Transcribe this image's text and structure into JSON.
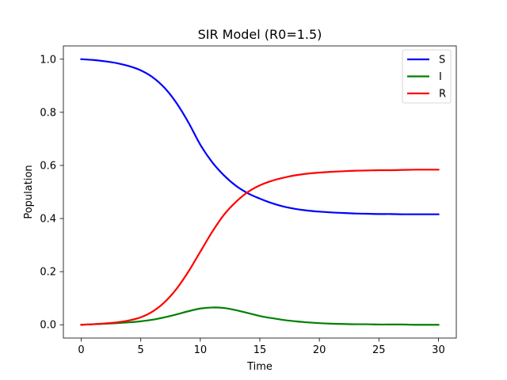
{
  "chart_data": {
    "type": "line",
    "title": "SIR Model (R0=1.5)",
    "xlabel": "Time",
    "ylabel": "Population",
    "xlim": [
      -1.5,
      31.5
    ],
    "ylim": [
      -0.05,
      1.05
    ],
    "xticks": [
      0,
      5,
      10,
      15,
      20,
      25,
      30
    ],
    "xtick_labels": [
      "0",
      "5",
      "10",
      "15",
      "20",
      "25",
      "30"
    ],
    "yticks": [
      0.0,
      0.2,
      0.4,
      0.6,
      0.8,
      1.0
    ],
    "ytick_labels": [
      "0.0",
      "0.2",
      "0.4",
      "0.6",
      "0.8",
      "1.0"
    ],
    "grid": false,
    "legend_position": "top-right",
    "x": [
      0,
      1,
      2,
      3,
      4,
      5,
      6,
      7,
      8,
      9,
      10,
      11,
      12,
      13,
      14,
      15,
      16,
      17,
      18,
      19,
      20,
      21,
      22,
      23,
      24,
      25,
      26,
      27,
      28,
      29,
      30
    ],
    "series": [
      {
        "name": "S",
        "color": "#0000ff",
        "values": [
          1.0,
          0.997,
          0.992,
          0.985,
          0.974,
          0.958,
          0.932,
          0.892,
          0.835,
          0.762,
          0.678,
          0.612,
          0.562,
          0.523,
          0.495,
          0.475,
          0.458,
          0.445,
          0.436,
          0.43,
          0.426,
          0.423,
          0.421,
          0.419,
          0.418,
          0.417,
          0.417,
          0.416,
          0.416,
          0.416,
          0.416
        ]
      },
      {
        "name": "I",
        "color": "#008000",
        "values": [
          0.0,
          0.002,
          0.004,
          0.006,
          0.009,
          0.013,
          0.019,
          0.028,
          0.039,
          0.051,
          0.061,
          0.065,
          0.063,
          0.055,
          0.044,
          0.033,
          0.025,
          0.018,
          0.013,
          0.009,
          0.006,
          0.004,
          0.003,
          0.002,
          0.002,
          0.001,
          0.001,
          0.001,
          0.0,
          0.0,
          0.0
        ]
      },
      {
        "name": "R",
        "color": "#ff0000",
        "values": [
          0.0,
          0.002,
          0.005,
          0.009,
          0.016,
          0.028,
          0.05,
          0.085,
          0.135,
          0.2,
          0.275,
          0.35,
          0.415,
          0.463,
          0.5,
          0.525,
          0.542,
          0.554,
          0.563,
          0.569,
          0.573,
          0.576,
          0.578,
          0.58,
          0.581,
          0.582,
          0.582,
          0.583,
          0.584,
          0.584,
          0.584
        ]
      }
    ]
  }
}
